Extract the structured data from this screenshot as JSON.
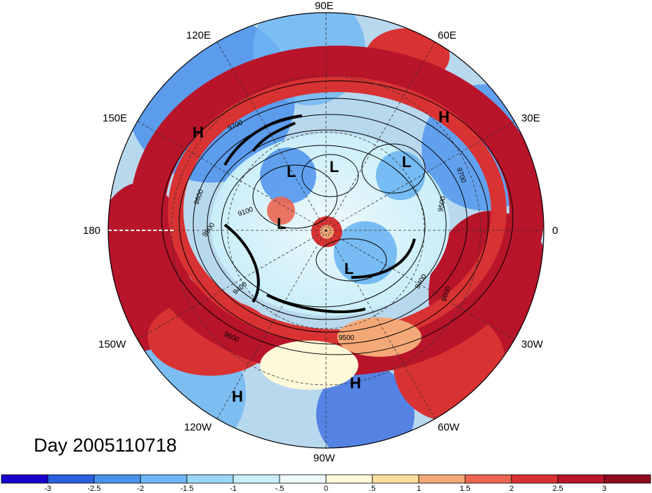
{
  "map": {
    "date_label": "Day 2005110718",
    "longitude_labels": [
      "90E",
      "60E",
      "30E",
      "0",
      "30W",
      "60W",
      "90W",
      "120W",
      "150W",
      "180",
      "150E",
      "120E"
    ],
    "contour_labels": [
      "9700",
      "9600",
      "9500",
      "9100",
      "9400",
      "9600",
      "9500",
      "9400",
      "9500",
      "9600",
      "9700"
    ],
    "pressure_systems": [
      "H",
      "H",
      "L",
      "L",
      "L",
      "L",
      "L",
      "H",
      "H"
    ]
  },
  "colorbar": {
    "ticks": [
      "-3",
      "-2.5",
      "-2",
      "-1.5",
      "-1",
      "-.5",
      "0",
      ".5",
      "1",
      "1.5",
      "2",
      "2.5",
      "3"
    ],
    "colors": [
      "#1a00cc",
      "#2a5fe0",
      "#4b92ec",
      "#6db6f2",
      "#9ad6f6",
      "#c9eef9",
      "#eef9fb",
      "#fff8d9",
      "#fbdf9f",
      "#f4a877",
      "#eb6550",
      "#d83233",
      "#b8142a",
      "#8e0a20"
    ]
  }
}
